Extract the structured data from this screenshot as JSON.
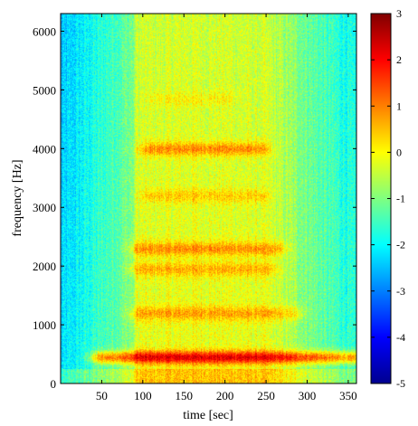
{
  "chart_data": {
    "type": "heatmap",
    "title": "",
    "xlabel": "time [sec]",
    "ylabel": "frequency [Hz]",
    "xlim": [
      0,
      360
    ],
    "ylim": [
      0,
      6300
    ],
    "xticks": [
      50,
      100,
      150,
      200,
      250,
      300,
      350
    ],
    "yticks": [
      0,
      1000,
      2000,
      3000,
      4000,
      5000,
      6000
    ],
    "colorbar": {
      "colormap": "jet",
      "range": [
        -5,
        3
      ],
      "ticks": [
        3,
        2,
        1,
        0,
        -1,
        -2,
        -3,
        -4,
        -5
      ]
    },
    "bands": [
      {
        "freq": 450,
        "t_start": 50,
        "t_end": 360,
        "level": 2.6
      },
      {
        "freq": 1200,
        "t_start": 95,
        "t_end": 280,
        "level": 1.0
      },
      {
        "freq": 1950,
        "t_start": 95,
        "t_end": 250,
        "level": 0.9
      },
      {
        "freq": 2300,
        "t_start": 95,
        "t_end": 260,
        "level": 1.2
      },
      {
        "freq": 3200,
        "t_start": 110,
        "t_end": 240,
        "level": 0.7
      },
      {
        "freq": 4000,
        "t_start": 110,
        "t_end": 240,
        "level": 1.3
      },
      {
        "freq": 4850,
        "t_start": 120,
        "t_end": 200,
        "level": 0.4
      }
    ]
  }
}
